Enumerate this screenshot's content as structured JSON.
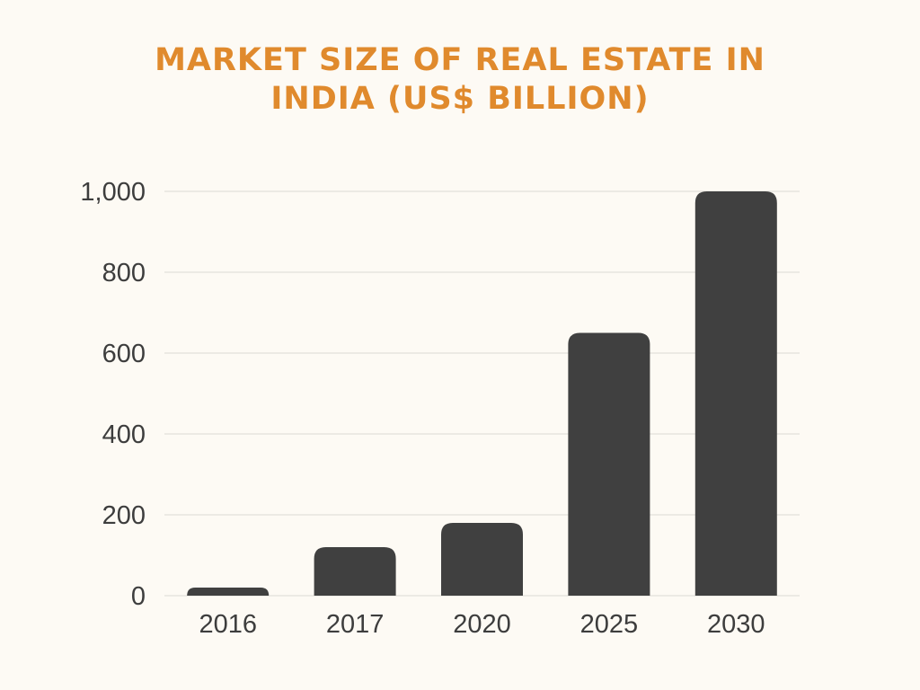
{
  "chart_data": {
    "type": "bar",
    "title_lines": [
      "MARKET SIZE OF REAL ESTATE IN",
      "INDIA (US$ BILLION)"
    ],
    "categories": [
      "2016",
      "2017",
      "2020",
      "2025",
      "2030"
    ],
    "values": [
      20,
      120,
      180,
      650,
      1000
    ],
    "ylim": [
      0,
      1000
    ],
    "yticks": [
      0,
      200,
      400,
      600,
      800,
      1000
    ],
    "ytick_labels": [
      "0",
      "200",
      "400",
      "600",
      "800",
      "1,000"
    ],
    "xlabel": "",
    "ylabel": "",
    "grid": true,
    "bar_color": "#404040",
    "grid_color": "#dcdad5"
  }
}
